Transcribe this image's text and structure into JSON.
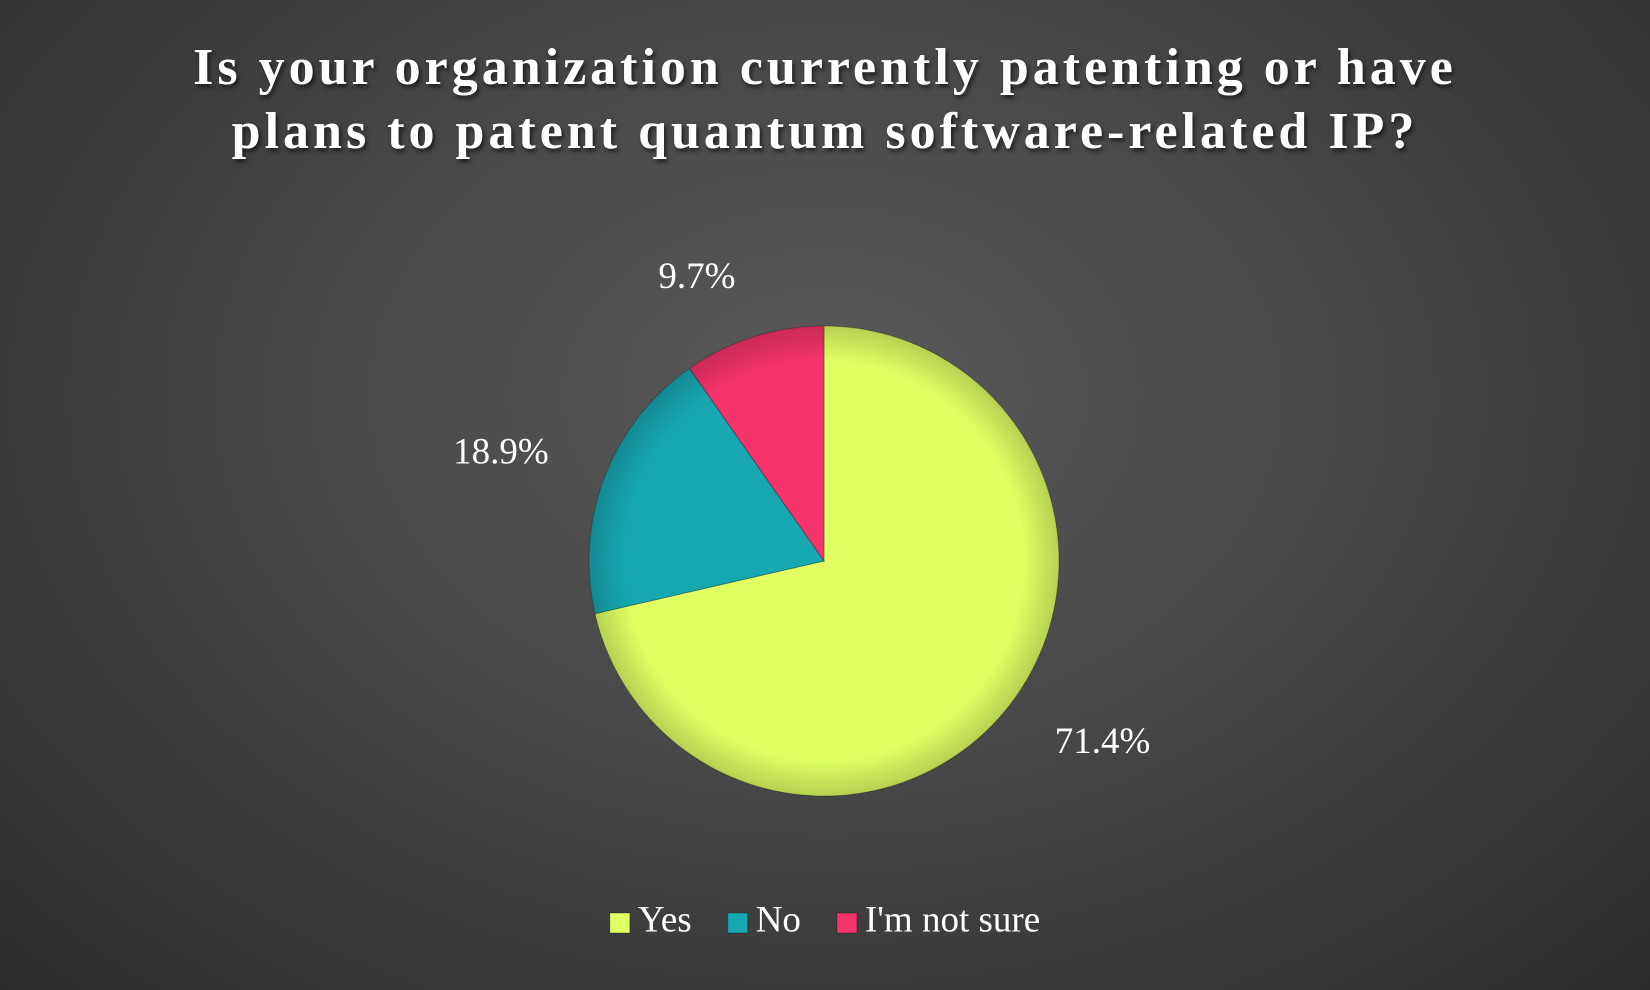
{
  "chart_data": {
    "type": "pie",
    "title": "Is your organization currently patenting or have plans to patent quantum software-related IP?",
    "categories": [
      "Yes",
      "No",
      "I'm not sure"
    ],
    "values": [
      71.4,
      18.9,
      9.7
    ],
    "value_labels": [
      "71.4%",
      "18.9%",
      "9.7%"
    ],
    "colors": [
      "#dfff63",
      "#17a7b1",
      "#f5336b"
    ],
    "legend": "bottom"
  }
}
